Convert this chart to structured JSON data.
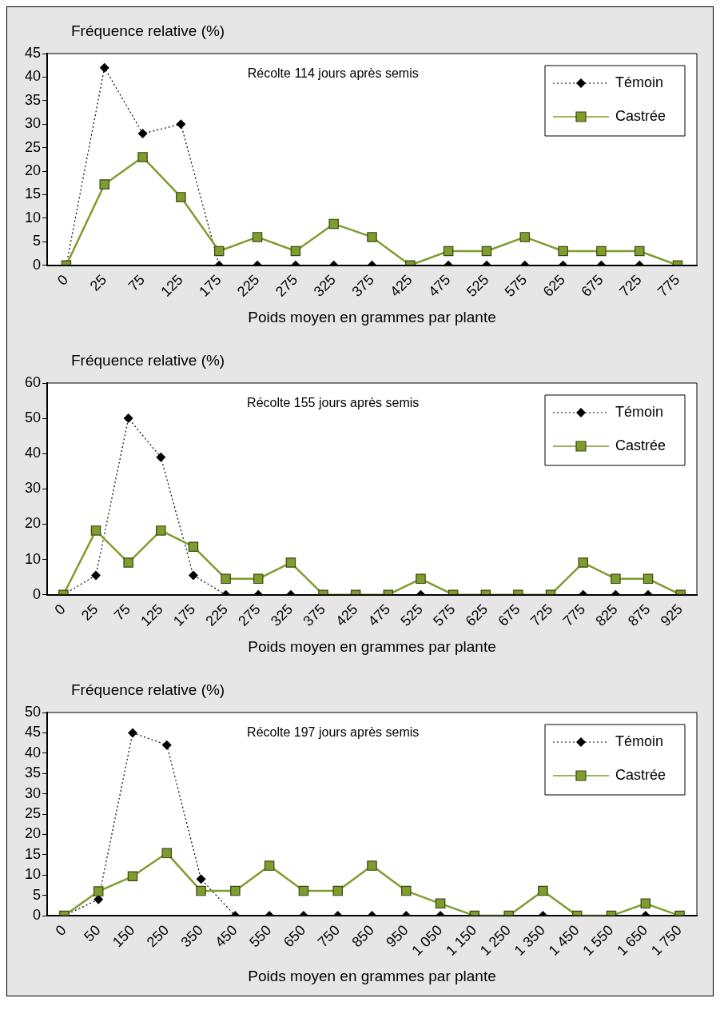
{
  "chart_data": [
    {
      "type": "line",
      "title": "Récolte 114 jours après semis",
      "ylabel": "Fréquence relative (%)",
      "xlabel": "Poids moyen en grammes par plante",
      "categories": [
        "0",
        "25",
        "75",
        "125",
        "175",
        "225",
        "275",
        "325",
        "375",
        "425",
        "475",
        "525",
        "575",
        "625",
        "675",
        "725",
        "775"
      ],
      "series": [
        {
          "name": "Témoin",
          "color": "#000000",
          "marker": "diamond",
          "line_style": "dotted",
          "values": [
            0,
            42,
            28,
            30,
            0,
            0,
            0,
            0,
            0,
            0,
            0,
            0,
            0,
            0,
            0,
            0,
            0
          ]
        },
        {
          "name": "Castrée",
          "color": "#7f9c2f",
          "marker": "square",
          "line_style": "solid",
          "values": [
            0,
            17.2,
            23,
            14.5,
            3,
            6,
            3,
            8.8,
            6,
            0,
            3,
            3,
            6,
            3,
            3,
            3,
            0
          ]
        }
      ],
      "ylim": [
        0,
        45
      ],
      "yticks": [
        0,
        5,
        10,
        15,
        20,
        25,
        30,
        35,
        40,
        45
      ],
      "grid": false,
      "legend": "top right"
    },
    {
      "type": "line",
      "title": "Récolte 155 jours après semis",
      "ylabel": "Fréquence relative (%)",
      "xlabel": "Poids moyen en grammes par plante",
      "categories": [
        "0",
        "25",
        "75",
        "125",
        "175",
        "225",
        "275",
        "325",
        "375",
        "425",
        "475",
        "525",
        "575",
        "625",
        "675",
        "725",
        "775",
        "825",
        "875",
        "925"
      ],
      "series": [
        {
          "name": "Témoin",
          "color": "#000000",
          "marker": "diamond",
          "line_style": "dotted",
          "values": [
            0,
            5.5,
            50,
            39,
            5.5,
            0,
            0,
            0,
            0,
            0,
            0,
            0,
            0,
            0,
            0,
            0,
            0,
            0,
            0,
            0
          ]
        },
        {
          "name": "Castrée",
          "color": "#7f9c2f",
          "marker": "square",
          "line_style": "solid",
          "values": [
            0,
            18.2,
            9.1,
            18.2,
            13.6,
            4.5,
            4.5,
            9.1,
            0,
            0,
            0,
            4.5,
            0,
            0,
            0,
            0,
            9.1,
            4.5,
            4.5,
            0
          ]
        }
      ],
      "ylim": [
        0,
        60
      ],
      "yticks": [
        0,
        10,
        20,
        30,
        40,
        50,
        60
      ],
      "grid": false,
      "legend": "top right"
    },
    {
      "type": "line",
      "title": "Récolte 197 jours après semis",
      "ylabel": "Fréquence relative (%)",
      "xlabel": "Poids moyen en grammes par plante",
      "categories": [
        "0",
        "50",
        "150",
        "250",
        "350",
        "450",
        "550",
        "650",
        "750",
        "850",
        "950",
        "1 050",
        "1 150",
        "1 250",
        "1 350",
        "1 450",
        "1 550",
        "1 650",
        "1 750"
      ],
      "series": [
        {
          "name": "Témoin",
          "color": "#000000",
          "marker": "diamond",
          "line_style": "dotted",
          "values": [
            0,
            4,
            45,
            42,
            9,
            0,
            0,
            0,
            0,
            0,
            0,
            0,
            0,
            0,
            0,
            0,
            0,
            0,
            0
          ]
        },
        {
          "name": "Castrée",
          "color": "#7f9c2f",
          "marker": "square",
          "line_style": "solid",
          "values": [
            0,
            6,
            9.7,
            15.4,
            6.1,
            6.1,
            12.3,
            6.1,
            6.1,
            12.3,
            6.1,
            3,
            0,
            0,
            6.1,
            0,
            0,
            3,
            0
          ]
        }
      ],
      "ylim": [
        0,
        50
      ],
      "yticks": [
        0,
        5,
        10,
        15,
        20,
        25,
        30,
        35,
        40,
        45,
        50
      ],
      "grid": false,
      "legend": "top right"
    }
  ]
}
